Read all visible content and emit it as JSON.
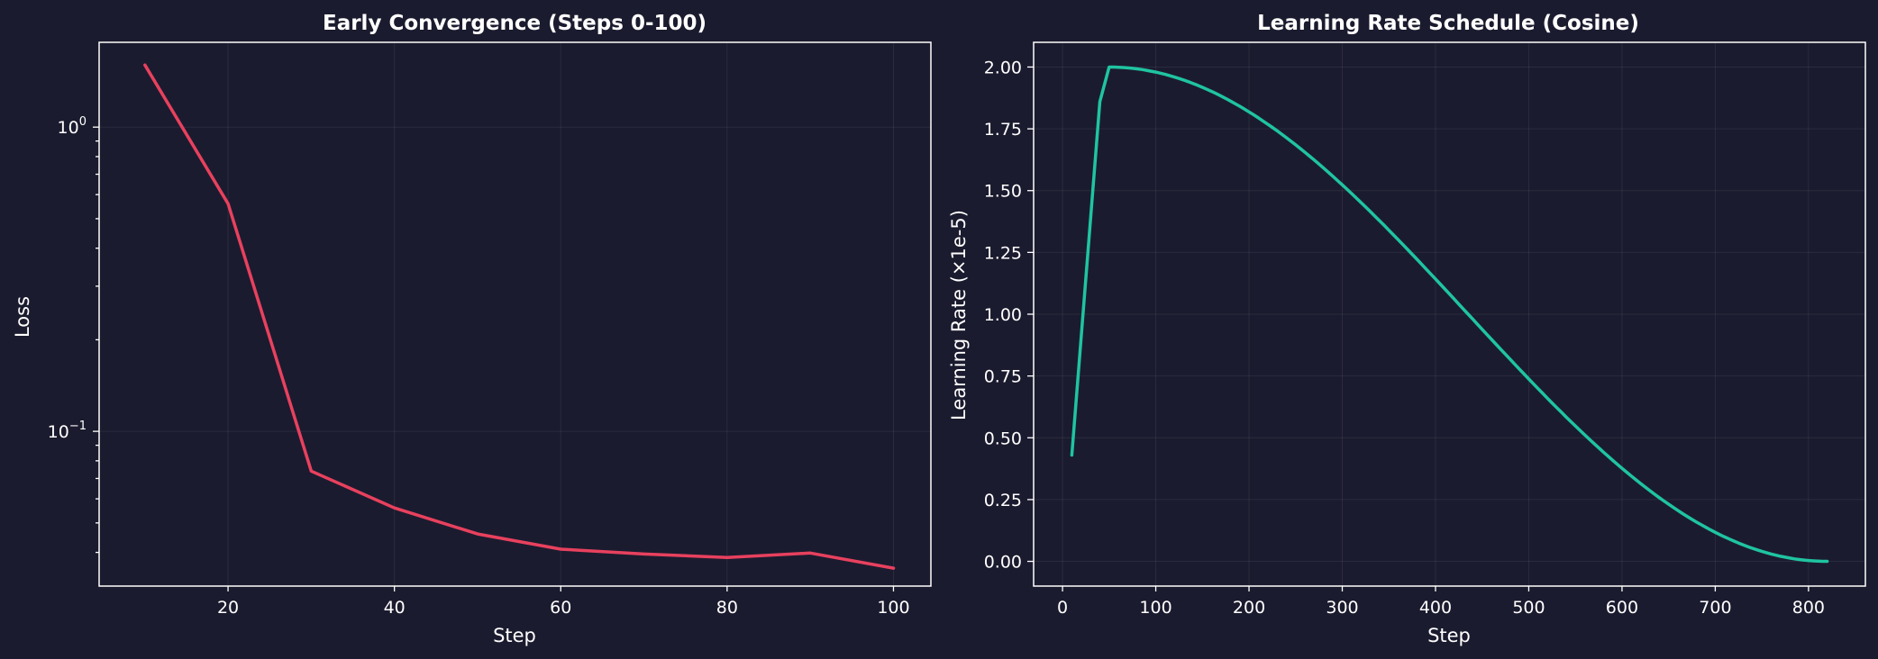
{
  "colors": {
    "background": "#1b1b2f",
    "text": "#ffffff",
    "loss_line": "#e8415e",
    "lr_line": "#1fc4a0"
  },
  "chart_data": [
    {
      "type": "line",
      "title": "Early Convergence (Steps 0-100)",
      "xlabel": "Step",
      "ylabel": "Loss",
      "yscale": "log",
      "grid": true,
      "xlim": [
        4.5,
        104.5
      ],
      "ylim": [
        0.031,
        1.9
      ],
      "xticks": [
        20,
        40,
        60,
        80,
        100
      ],
      "yticks": [
        {
          "value": 1,
          "base": "10",
          "exp": "0"
        },
        {
          "value": 0.1,
          "base": "10",
          "exp": "−1"
        }
      ],
      "series": [
        {
          "x": [
            10,
            20,
            30,
            40,
            50,
            60,
            70,
            80,
            90,
            100
          ],
          "y": [
            1.6,
            0.56,
            0.074,
            0.056,
            0.046,
            0.041,
            0.0395,
            0.0385,
            0.0398,
            0.0355
          ],
          "color": "#e8415e"
        }
      ]
    },
    {
      "type": "line",
      "title": "Learning Rate Schedule (Cosine)",
      "xlabel": "Step",
      "ylabel": "Learning Rate (×1e-5)",
      "grid": true,
      "xlim": [
        -31,
        861
      ],
      "ylim": [
        -0.1,
        2.1
      ],
      "xticks": [
        0,
        100,
        200,
        300,
        400,
        500,
        600,
        700,
        800
      ],
      "yticks": [
        "0.00",
        "0.25",
        "0.50",
        "0.75",
        "1.00",
        "1.25",
        "1.50",
        "1.75",
        "2.00"
      ],
      "schedule": {
        "type": "cosine",
        "warmup_points": [
          [
            10,
            0.43
          ],
          [
            40,
            1.86
          ],
          [
            50,
            2.0
          ]
        ],
        "peak": 2.0,
        "peak_step": 50,
        "end_step": 820,
        "end_value": 0.0
      },
      "series": [
        {
          "color": "#1fc4a0"
        }
      ]
    }
  ]
}
